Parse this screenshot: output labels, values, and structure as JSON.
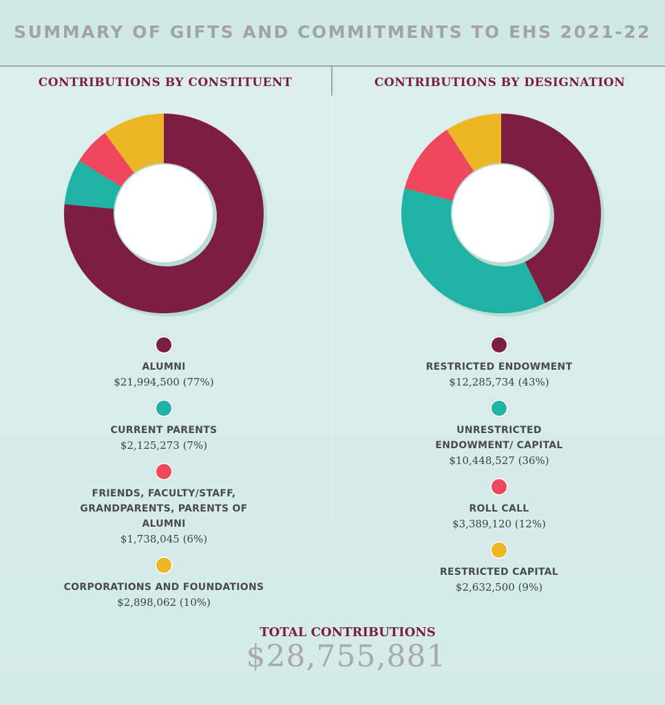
{
  "header": {
    "title": "SUMMARY OF GIFTS AND COMMITMENTS TO EHS 2021-22"
  },
  "colors": {
    "maroon": "#7d1d40",
    "teal": "#20b2a5",
    "coral": "#ef475d",
    "gold": "#ecb624"
  },
  "chart_data": [
    {
      "type": "pie",
      "title": "CONTRIBUTIONS BY CONSTITUENT",
      "slices": [
        {
          "label": "ALUMNI",
          "value": 21994500,
          "value_text": "$21,994,500 (77%)",
          "percent": 77,
          "color": "#7d1d40"
        },
        {
          "label": "CURRENT PARENTS",
          "value": 2125273,
          "value_text": "$2,125,273 (7%)",
          "percent": 7,
          "color": "#20b2a5"
        },
        {
          "label": "FRIENDS, FACULTY/STAFF, GRANDPARENTS, PARENTS OF ALUMNI",
          "value": 1738045,
          "value_text": "$1,738,045 (6%)",
          "percent": 6,
          "color": "#ef475d"
        },
        {
          "label": "CORPORATIONS AND FOUNDATIONS",
          "value": 2898062,
          "value_text": "$2,898,062 (10%)",
          "percent": 10,
          "color": "#ecb624"
        }
      ]
    },
    {
      "type": "pie",
      "title": "CONTRIBUTIONS BY DESIGNATION",
      "slices": [
        {
          "label": "RESTRICTED ENDOWMENT",
          "value": 12285734,
          "value_text": "$12,285,734 (43%)",
          "percent": 43,
          "color": "#7d1d40"
        },
        {
          "label": "UNRESTRICTED ENDOWMENT/ CAPITAL",
          "value": 10448527,
          "value_text": "$10,448,527 (36%)",
          "percent": 36,
          "color": "#20b2a5"
        },
        {
          "label": "ROLL CALL",
          "value": 3389120,
          "value_text": "$3,389,120 (12%)",
          "percent": 12,
          "color": "#ef475d"
        },
        {
          "label": "RESTRICTED CAPITAL",
          "value": 2632500,
          "value_text": "$2,632,500 (9%)",
          "percent": 9,
          "color": "#ecb624"
        }
      ]
    }
  ],
  "total": {
    "label": "TOTAL CONTRIBUTIONS",
    "value": "$28,755,881"
  }
}
